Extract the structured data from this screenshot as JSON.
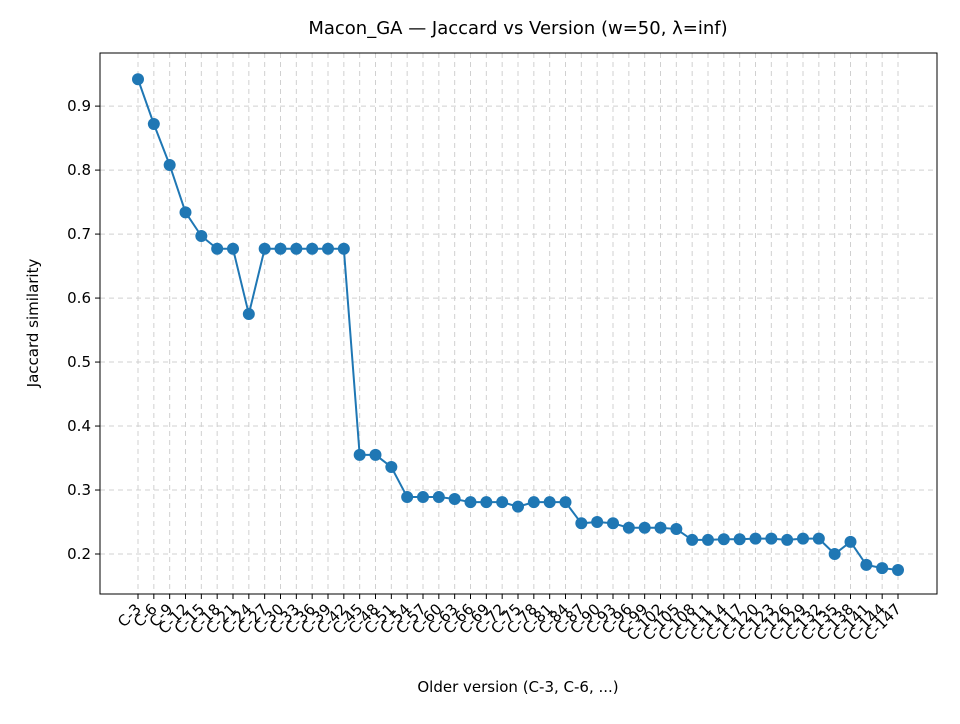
{
  "chart_data": {
    "type": "line",
    "title": "Macon_GA — Jaccard vs Version (w=50, λ=inf)",
    "x_label": "Older version (C-3, C-6, ...)",
    "y_label": "Jaccard similarity",
    "categories": [
      "C-3",
      "C-6",
      "C-9",
      "C-12",
      "C-15",
      "C-18",
      "C-21",
      "C-24",
      "C-27",
      "C-30",
      "C-33",
      "C-36",
      "C-39",
      "C-42",
      "C-45",
      "C-48",
      "C-51",
      "C-54",
      "C-57",
      "C-60",
      "C-63",
      "C-66",
      "C-69",
      "C-72",
      "C-75",
      "C-78",
      "C-81",
      "C-84",
      "C-87",
      "C-90",
      "C-93",
      "C-96",
      "C-99",
      "C-102",
      "C-105",
      "C-108",
      "C-111",
      "C-114",
      "C-117",
      "C-120",
      "C-123",
      "C-126",
      "C-129",
      "C-132",
      "C-135",
      "C-138",
      "C-141",
      "C-144",
      "C-147"
    ],
    "series": [
      {
        "name": "Jaccard",
        "color": "#1f77b4",
        "values": [
          0.942,
          0.872,
          0.808,
          0.734,
          0.697,
          0.677,
          0.677,
          0.575,
          0.677,
          0.677,
          0.677,
          0.677,
          0.677,
          0.677,
          0.355,
          0.355,
          0.336,
          0.289,
          0.289,
          0.289,
          0.286,
          0.281,
          0.281,
          0.281,
          0.274,
          0.281,
          0.281,
          0.281,
          0.248,
          0.25,
          0.248,
          0.241,
          0.241,
          0.241,
          0.239,
          0.222,
          0.222,
          0.223,
          0.223,
          0.224,
          0.224,
          0.222,
          0.224,
          0.224,
          0.2,
          0.219,
          0.183,
          0.178,
          0.175
        ]
      }
    ],
    "ylim": [
      0.1375,
      0.983
    ],
    "yticks": [
      0.2,
      0.3,
      0.4,
      0.5,
      0.6,
      0.7,
      0.8,
      0.9
    ],
    "grid": true
  }
}
